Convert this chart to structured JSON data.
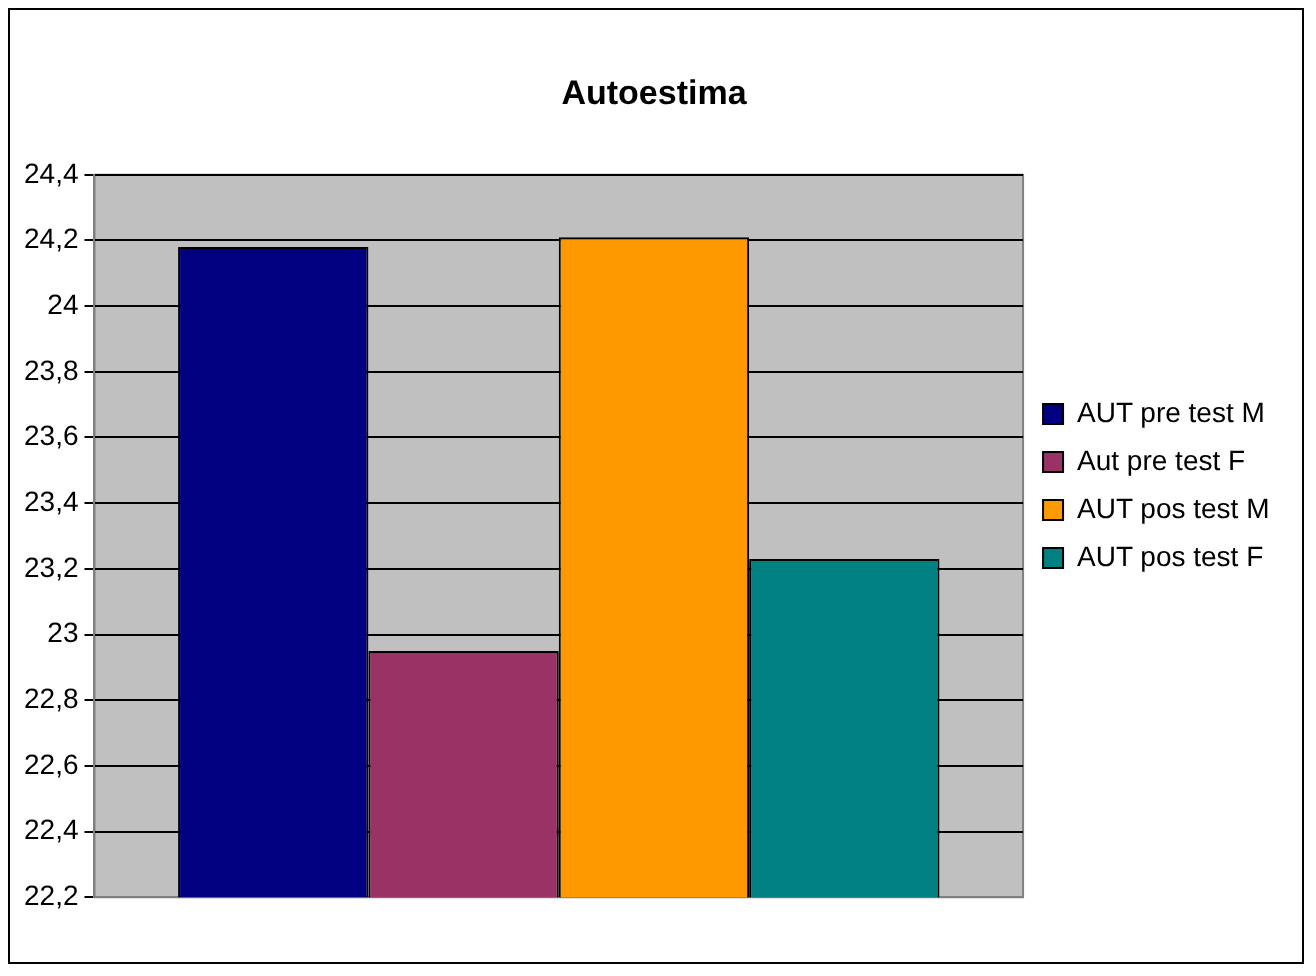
{
  "chart_data": {
    "type": "bar",
    "title": "Autoestima",
    "categories": [
      null
    ],
    "series": [
      {
        "name": "AUT pre test M",
        "color": "#000080",
        "values": [
          24.18
        ]
      },
      {
        "name": "Aut pre test F",
        "color": "#993366",
        "values": [
          22.95
        ]
      },
      {
        "name": "AUT pos test M",
        "color": "#ff9900",
        "values": [
          24.21
        ]
      },
      {
        "name": "AUT pos test F",
        "color": "#008080",
        "values": [
          23.23
        ]
      }
    ],
    "ylim": [
      22.2,
      24.4
    ],
    "yticks": [
      {
        "value": 22.2,
        "label": "22,2"
      },
      {
        "value": 22.4,
        "label": "22,4"
      },
      {
        "value": 22.6,
        "label": "22,6"
      },
      {
        "value": 22.8,
        "label": "22,8"
      },
      {
        "value": 23,
        "label": "23"
      },
      {
        "value": 23.2,
        "label": "23,2"
      },
      {
        "value": 23.4,
        "label": "23,4"
      },
      {
        "value": 23.6,
        "label": "23,6"
      },
      {
        "value": 23.8,
        "label": "23,8"
      },
      {
        "value": 24,
        "label": "24"
      },
      {
        "value": 24.2,
        "label": "24,2"
      },
      {
        "value": 24.4,
        "label": "24,4"
      }
    ],
    "grid": "y",
    "legend": "right"
  }
}
